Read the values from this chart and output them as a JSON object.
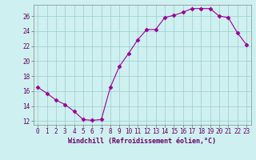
{
  "x": [
    0,
    1,
    2,
    3,
    4,
    5,
    6,
    7,
    8,
    9,
    10,
    11,
    12,
    13,
    14,
    15,
    16,
    17,
    18,
    19,
    20,
    21,
    22,
    23
  ],
  "y": [
    16.5,
    15.7,
    14.8,
    14.2,
    13.3,
    12.2,
    12.1,
    12.2,
    16.5,
    19.3,
    21.0,
    22.8,
    24.2,
    24.2,
    25.8,
    26.1,
    26.5,
    27.0,
    27.0,
    27.0,
    26.0,
    25.8,
    23.8,
    22.2
  ],
  "line_color": "#990099",
  "marker": "D",
  "markersize": 2.5,
  "bg_color": "#cff0f0",
  "grid_color": "#99cccc",
  "xlabel": "Windchill (Refroidissement éolien,°C)",
  "xlabel_color": "#660066",
  "tick_color": "#660066",
  "xlim": [
    -0.5,
    23.5
  ],
  "ylim": [
    11.5,
    27.5
  ],
  "yticks": [
    12,
    14,
    16,
    18,
    20,
    22,
    24,
    26
  ],
  "xticks": [
    0,
    1,
    2,
    3,
    4,
    5,
    6,
    7,
    8,
    9,
    10,
    11,
    12,
    13,
    14,
    15,
    16,
    17,
    18,
    19,
    20,
    21,
    22,
    23
  ],
  "tick_fontsize": 5.5,
  "ylabel_fontsize": 6,
  "xlabel_fontsize": 6
}
